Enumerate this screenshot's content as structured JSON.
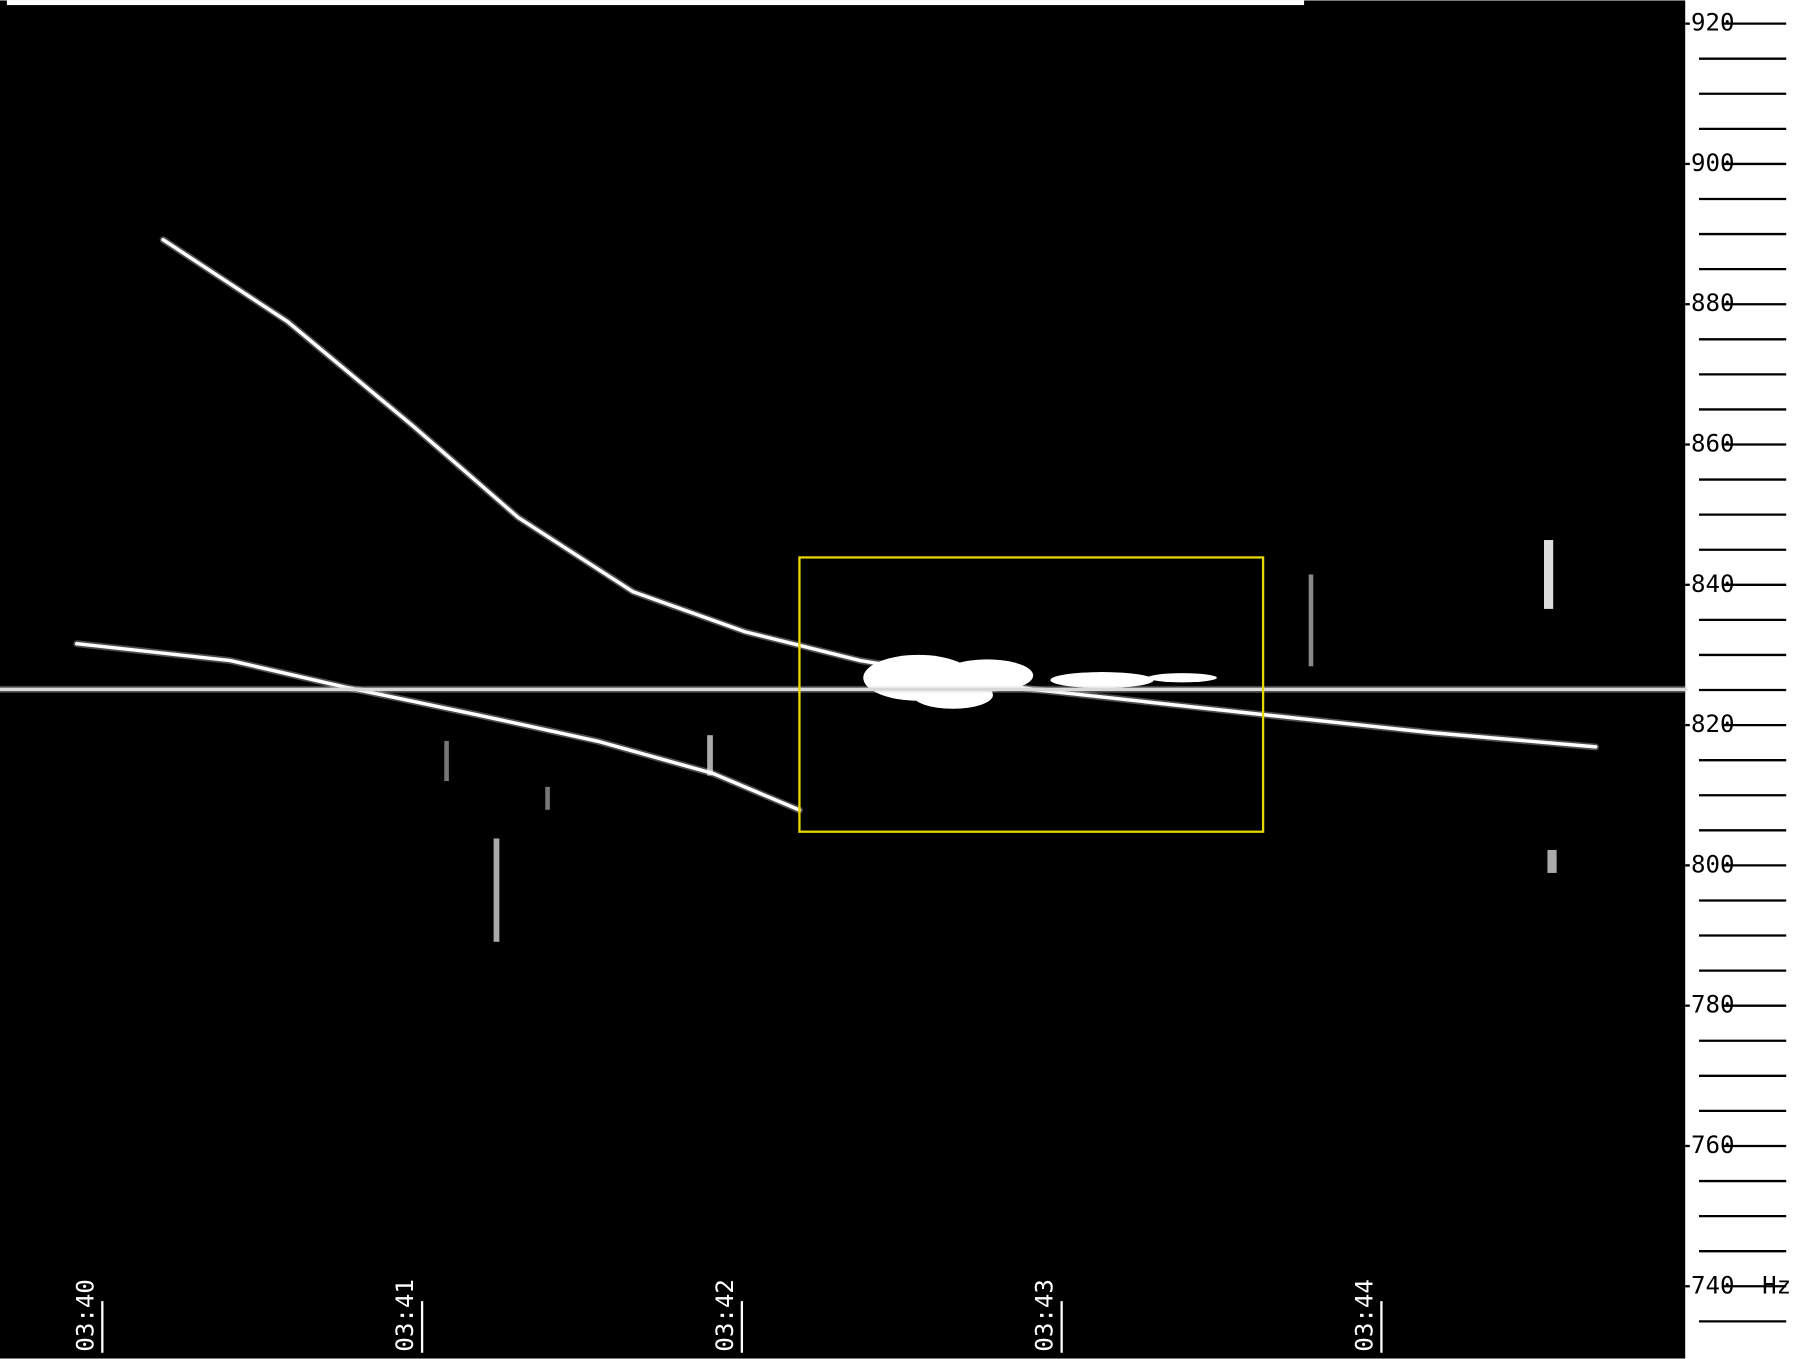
{
  "chart_data": {
    "type": "spectrogram",
    "xlim": [
      -0.32,
      4.95
    ],
    "xticks": [
      {
        "value": 0,
        "label": "03:40"
      },
      {
        "value": 1,
        "label": "03:41"
      },
      {
        "value": 2,
        "label": "03:42"
      },
      {
        "value": 3,
        "label": "03:43"
      },
      {
        "value": 4,
        "label": "03:44"
      }
    ],
    "ylim": [
      729.7,
      923.3
    ],
    "yticks": [
      740,
      760,
      780,
      800,
      820,
      840,
      860,
      880,
      900,
      920
    ],
    "yminorticks": [
      735,
      745,
      750,
      755,
      765,
      770,
      775,
      785,
      790,
      795,
      805,
      810,
      815,
      825,
      830,
      835,
      845,
      850,
      855,
      865,
      870,
      875,
      885,
      890,
      895,
      905,
      910,
      915
    ],
    "y_unit": "Hz",
    "series": [
      {
        "color": "#ffffff",
        "x": [
          0.19,
          0.58,
          0.97,
          1.3,
          1.66,
          2.01,
          2.37,
          2.91,
          3.63,
          4.16,
          4.67
        ],
        "values": [
          889.2,
          877.5,
          862.7,
          849.6,
          839.0,
          833.3,
          829.2,
          825.1,
          821.5,
          818.9,
          816.9
        ]
      },
      {
        "color": "#ffffff",
        "x": [
          -0.08,
          0.4,
          0.76,
          1.17,
          1.55,
          1.91,
          2.18
        ],
        "values": [
          831.6,
          829.2,
          825.4,
          821.5,
          817.7,
          813.1,
          807.9
        ]
      },
      {
        "color": "#d8d8d8",
        "x": [
          -0.32,
          4.95
        ],
        "values": [
          825.1,
          825.1
        ]
      }
    ],
    "highlight": {
      "xlim": [
        2.18,
        3.63
      ],
      "ylim": [
        804.8,
        843.9
      ],
      "color": "#e6d800"
    }
  }
}
